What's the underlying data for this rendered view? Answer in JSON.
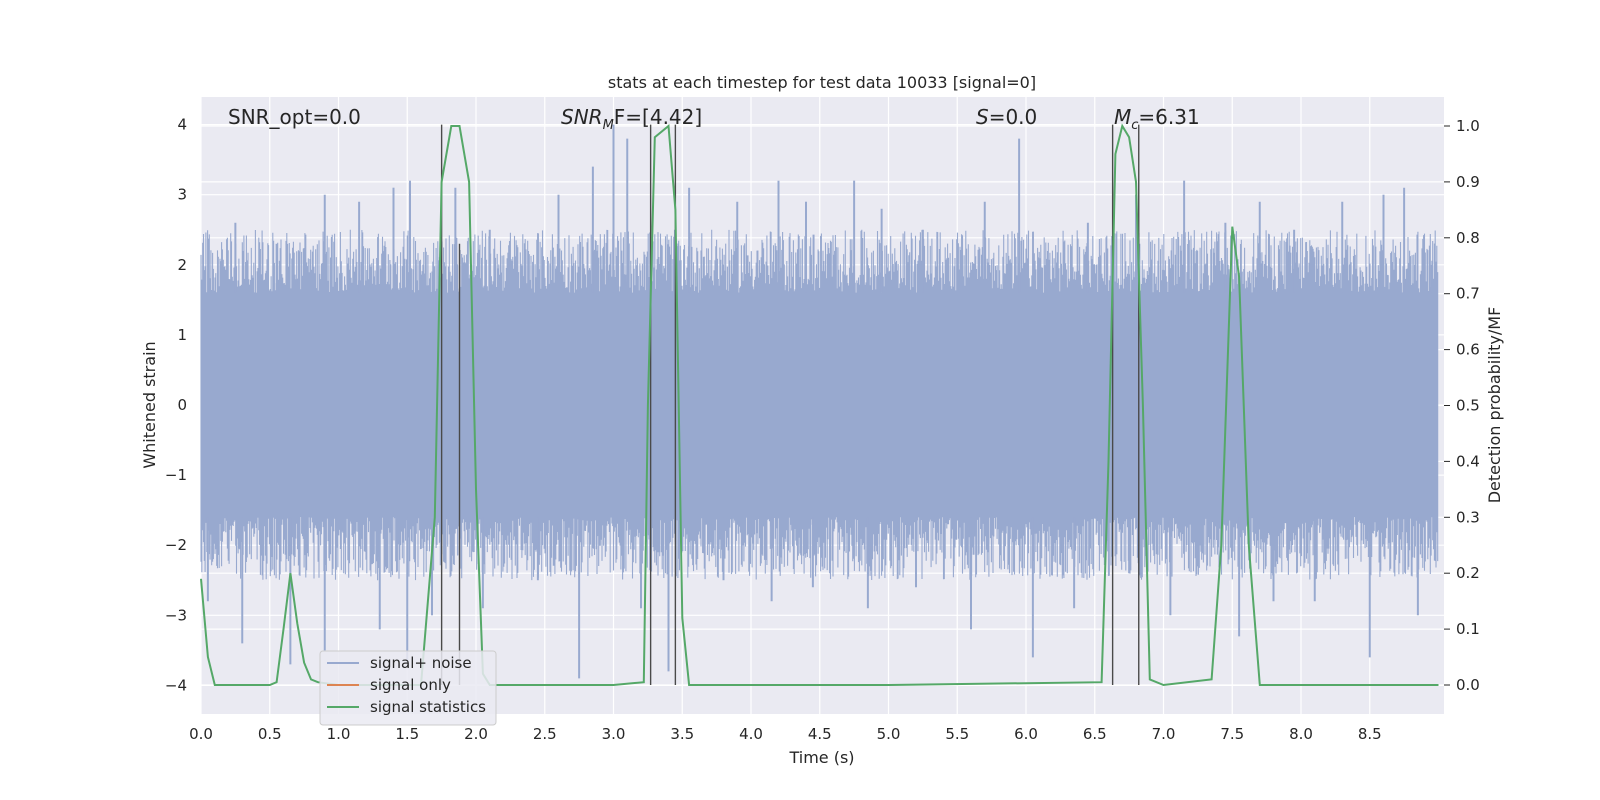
{
  "chart_data": {
    "type": "line",
    "title": "stats at each timestep for test data 10033 [signal=0]",
    "xlabel": "Time (s)",
    "ylabel_left": "Whitened strain",
    "ylabel_right": "Detection probability/MF",
    "xlim": [
      0.0,
      9.0
    ],
    "ylim_left": [
      -4.4,
      4.4
    ],
    "ylim_right": [
      -0.05,
      1.05
    ],
    "x_ticks": [
      "0.0",
      "0.5",
      "1.0",
      "1.5",
      "2.0",
      "2.5",
      "3.0",
      "3.5",
      "4.0",
      "4.5",
      "5.0",
      "5.5",
      "6.0",
      "6.5",
      "7.0",
      "7.5",
      "8.0",
      "8.5"
    ],
    "y_ticks_left": [
      "4",
      "3",
      "2",
      "1",
      "0",
      "−1",
      "−2",
      "−3",
      "−4"
    ],
    "y_ticks_right": [
      "1.0",
      "0.9",
      "0.8",
      "0.7",
      "0.6",
      "0.5",
      "0.4",
      "0.3",
      "0.2",
      "0.1",
      "0.0"
    ],
    "grid": true,
    "legend_position": "lower-left",
    "annotations": {
      "snr_opt": "SNR_opt=0.0",
      "snr_mf_sym": "SNR",
      "snr_mf_sub": "M",
      "snr_mf_rest": "F=[4.42]",
      "s_sym": "S",
      "s_rest": "=0.0",
      "mc_sym": "M",
      "mc_sub": "c",
      "mc_rest": "=6.31"
    },
    "series": [
      {
        "name": "signal+ noise",
        "axis": "left",
        "color": "#98a9cf",
        "style": "noise-band",
        "band_low": -1.6,
        "band_high": 1.6,
        "spike_high": [
          [
            0.25,
            2.6
          ],
          [
            0.55,
            2.3
          ],
          [
            0.9,
            3.0
          ],
          [
            1.15,
            2.9
          ],
          [
            1.4,
            3.1
          ],
          [
            1.52,
            3.2
          ],
          [
            1.85,
            3.1
          ],
          [
            2.1,
            2.5
          ],
          [
            2.6,
            3.0
          ],
          [
            2.85,
            3.4
          ],
          [
            3.0,
            4.0
          ],
          [
            3.1,
            3.8
          ],
          [
            3.55,
            3.1
          ],
          [
            3.9,
            2.9
          ],
          [
            4.2,
            3.2
          ],
          [
            4.4,
            2.9
          ],
          [
            4.75,
            3.2
          ],
          [
            4.95,
            2.8
          ],
          [
            5.25,
            2.5
          ],
          [
            5.7,
            2.9
          ],
          [
            5.95,
            3.8
          ],
          [
            6.45,
            2.6
          ],
          [
            6.8,
            3.0
          ],
          [
            7.15,
            3.2
          ],
          [
            7.45,
            2.6
          ],
          [
            7.7,
            2.9
          ],
          [
            7.95,
            2.5
          ],
          [
            8.3,
            2.9
          ],
          [
            8.6,
            3.0
          ],
          [
            8.75,
            3.1
          ],
          [
            8.95,
            2.0
          ]
        ],
        "spike_low": [
          [
            0.05,
            -2.8
          ],
          [
            0.3,
            -3.4
          ],
          [
            0.65,
            -3.7
          ],
          [
            0.9,
            -3.5
          ],
          [
            1.3,
            -3.2
          ],
          [
            1.5,
            -3.7
          ],
          [
            1.68,
            -3.0
          ],
          [
            2.05,
            -2.9
          ],
          [
            2.45,
            -2.5
          ],
          [
            2.75,
            -3.9
          ],
          [
            3.2,
            -2.9
          ],
          [
            3.4,
            -3.8
          ],
          [
            3.8,
            -2.5
          ],
          [
            4.15,
            -2.8
          ],
          [
            4.45,
            -2.6
          ],
          [
            4.85,
            -2.9
          ],
          [
            5.2,
            -2.6
          ],
          [
            5.6,
            -3.2
          ],
          [
            6.05,
            -3.6
          ],
          [
            6.35,
            -2.9
          ],
          [
            6.75,
            -2.4
          ],
          [
            7.05,
            -3.0
          ],
          [
            7.55,
            -3.3
          ],
          [
            7.8,
            -2.8
          ],
          [
            8.1,
            -2.8
          ],
          [
            8.5,
            -3.6
          ],
          [
            8.85,
            -3.0
          ]
        ]
      },
      {
        "name": "signal only",
        "axis": "left",
        "color": "#dd8452",
        "x": [],
        "y": []
      },
      {
        "name": "signal statistics",
        "axis": "right",
        "color": "#55a868",
        "x": [
          0.0,
          0.05,
          0.1,
          0.5,
          0.55,
          0.6,
          0.65,
          0.7,
          0.75,
          0.8,
          0.85,
          1.0,
          1.1,
          1.6,
          1.7,
          1.75,
          1.82,
          1.88,
          1.95,
          2.0,
          2.05,
          2.1,
          2.25,
          3.0,
          3.22,
          3.25,
          3.3,
          3.4,
          3.45,
          3.5,
          3.55,
          4.0,
          5.0,
          6.55,
          6.6,
          6.65,
          6.7,
          6.75,
          6.8,
          6.85,
          6.9,
          7.0,
          7.35,
          7.42,
          7.5,
          7.55,
          7.62,
          7.7,
          8.0,
          9.0
        ],
        "y": [
          0.19,
          0.05,
          0.0,
          0.0,
          0.005,
          0.1,
          0.2,
          0.11,
          0.04,
          0.01,
          0.005,
          0.0,
          0.0,
          0.0,
          0.3,
          0.9,
          1.0,
          1.0,
          0.9,
          0.35,
          0.02,
          0.0,
          0.0,
          0.0,
          0.005,
          0.5,
          0.98,
          1.0,
          0.85,
          0.12,
          0.0,
          0.0,
          0.0,
          0.005,
          0.4,
          0.95,
          1.0,
          0.98,
          0.9,
          0.5,
          0.01,
          0.0,
          0.01,
          0.25,
          0.82,
          0.73,
          0.25,
          0.0,
          0.0,
          0.0
        ]
      }
    ],
    "vertical_lines": {
      "color": "#4a4a4a",
      "x": [
        1.75,
        1.88,
        3.27,
        3.45,
        6.63,
        6.82
      ],
      "y_top": [
        4.0,
        2.3,
        4.0,
        4.0,
        4.0,
        4.0
      ]
    }
  }
}
